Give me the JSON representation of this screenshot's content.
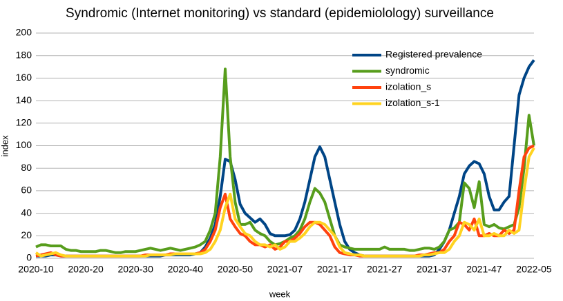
{
  "chart_data": {
    "type": "line",
    "title": "Syndromic (Internet monitoring) vs standard (epidemiolology) surveillance",
    "x_label": "week",
    "y_label": "index",
    "categories": [
      "2020-10",
      null,
      null,
      null,
      null,
      null,
      null,
      null,
      null,
      null,
      "2020-20",
      null,
      null,
      null,
      null,
      null,
      null,
      null,
      null,
      null,
      "2020-30",
      null,
      null,
      null,
      null,
      null,
      null,
      null,
      null,
      null,
      "2020-40",
      null,
      null,
      null,
      null,
      null,
      null,
      null,
      null,
      null,
      "2020-50",
      null,
      null,
      null,
      null,
      null,
      null,
      null,
      null,
      null,
      "2021-07",
      null,
      null,
      null,
      null,
      null,
      null,
      null,
      null,
      null,
      "2021-17",
      null,
      null,
      null,
      null,
      null,
      null,
      null,
      null,
      null,
      "2021-27",
      null,
      null,
      null,
      null,
      null,
      null,
      null,
      null,
      null,
      "2021-37",
      null,
      null,
      null,
      null,
      null,
      null,
      null,
      null,
      null,
      "2021-47",
      null,
      null,
      null,
      null,
      null,
      null,
      null,
      null,
      null,
      "2022-05"
    ],
    "series": [
      {
        "name": "Registered prevalence",
        "color": "#004586",
        "values": [
          2,
          2,
          2,
          3,
          3,
          2,
          2,
          2,
          2,
          2,
          2,
          2,
          2,
          2,
          2,
          2,
          2,
          2,
          2,
          2,
          2,
          2,
          2,
          2,
          2,
          2,
          3,
          3,
          3,
          3,
          3,
          3,
          4,
          5,
          10,
          18,
          30,
          55,
          88,
          86,
          70,
          48,
          40,
          36,
          32,
          35,
          30,
          22,
          20,
          20,
          20,
          21,
          25,
          35,
          50,
          70,
          90,
          99,
          90,
          70,
          50,
          30,
          15,
          8,
          5,
          3,
          2,
          2,
          2,
          2,
          2,
          2,
          2,
          2,
          2,
          2,
          2,
          2,
          2,
          2,
          3,
          8,
          15,
          25,
          40,
          55,
          75,
          82,
          86,
          84,
          75,
          55,
          43,
          43,
          50,
          55,
          100,
          145,
          160,
          170,
          176
        ]
      },
      {
        "name": "syndromic",
        "color": "#579d1c",
        "values": [
          10,
          12,
          12,
          11,
          11,
          11,
          8,
          7,
          7,
          6,
          6,
          6,
          6,
          7,
          7,
          6,
          5,
          5,
          6,
          6,
          6,
          7,
          8,
          9,
          8,
          7,
          8,
          9,
          8,
          7,
          8,
          9,
          10,
          12,
          15,
          25,
          40,
          90,
          168,
          90,
          50,
          30,
          30,
          32,
          25,
          22,
          20,
          15,
          12,
          13,
          15,
          18,
          20,
          25,
          35,
          50,
          62,
          58,
          50,
          35,
          20,
          12,
          10,
          9,
          8,
          8,
          8,
          8,
          8,
          8,
          10,
          8,
          8,
          8,
          8,
          7,
          7,
          8,
          9,
          9,
          8,
          10,
          15,
          25,
          27,
          32,
          67,
          62,
          45,
          68,
          30,
          28,
          30,
          27,
          26,
          28,
          30,
          45,
          80,
          127,
          100
        ]
      },
      {
        "name": "izolation_s",
        "color": "#ff420e",
        "values": [
          2,
          3,
          4,
          5,
          3,
          2,
          2,
          2,
          2,
          2,
          2,
          2,
          2,
          2,
          2,
          2,
          2,
          2,
          2,
          2,
          2,
          2,
          3,
          3,
          3,
          3,
          3,
          4,
          4,
          4,
          4,
          4,
          4,
          5,
          8,
          15,
          25,
          45,
          57,
          35,
          28,
          22,
          20,
          15,
          12,
          12,
          10,
          12,
          8,
          10,
          15,
          15,
          18,
          22,
          28,
          32,
          32,
          30,
          25,
          20,
          10,
          5,
          4,
          3,
          3,
          2,
          2,
          2,
          2,
          2,
          2,
          2,
          2,
          2,
          2,
          2,
          2,
          3,
          3,
          4,
          5,
          5,
          8,
          15,
          20,
          32,
          30,
          25,
          35,
          20,
          20,
          22,
          20,
          20,
          25,
          22,
          25,
          60,
          90,
          98,
          100
        ]
      },
      {
        "name": "izolation_s-1",
        "color": "#ffd320",
        "values": [
          5,
          2,
          3,
          4,
          5,
          3,
          2,
          2,
          2,
          2,
          2,
          2,
          2,
          2,
          2,
          2,
          2,
          2,
          2,
          2,
          2,
          2,
          2,
          3,
          3,
          3,
          3,
          3,
          4,
          4,
          4,
          4,
          4,
          4,
          5,
          8,
          15,
          25,
          45,
          57,
          35,
          28,
          22,
          20,
          15,
          12,
          12,
          10,
          12,
          8,
          10,
          15,
          15,
          18,
          22,
          28,
          32,
          32,
          30,
          25,
          20,
          10,
          5,
          4,
          3,
          3,
          2,
          2,
          2,
          2,
          2,
          2,
          2,
          2,
          2,
          2,
          2,
          2,
          3,
          3,
          4,
          5,
          5,
          8,
          15,
          20,
          32,
          30,
          25,
          35,
          20,
          20,
          22,
          20,
          20,
          25,
          22,
          25,
          60,
          90,
          98
        ]
      }
    ],
    "ylim": [
      0,
      200
    ],
    "yticks": [
      0,
      20,
      40,
      60,
      80,
      100,
      120,
      140,
      160,
      180,
      200
    ],
    "grid": true,
    "legend": "top-right"
  }
}
